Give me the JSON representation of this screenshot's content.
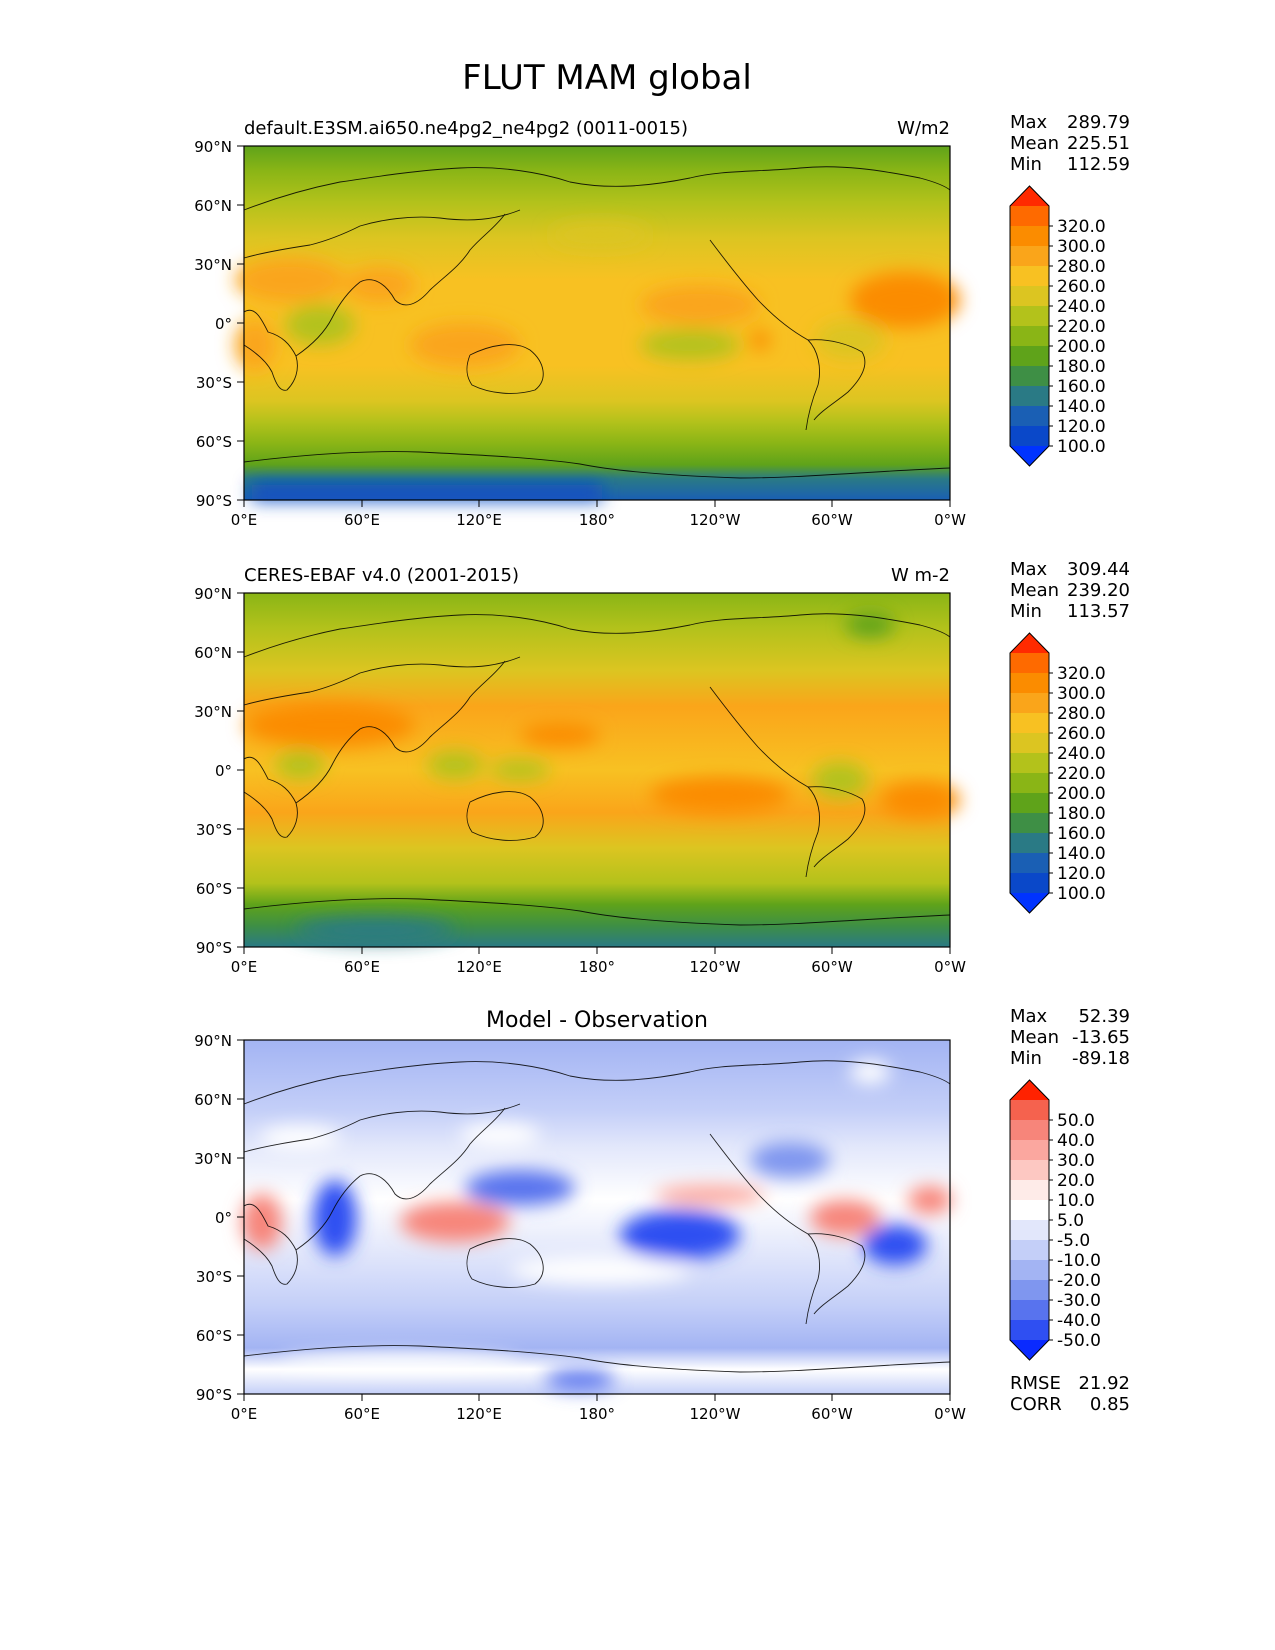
{
  "figure_title": "FLUT MAM global",
  "chart_data": [
    {
      "type": "heatmap",
      "title_left": "default.E3SM.ai650.ne4pg2_ne4pg2 (0011-0015)",
      "title_right": "W/m2",
      "stats": [
        {
          "label": "Max",
          "value": "289.79"
        },
        {
          "label": "Mean",
          "value": "225.51"
        },
        {
          "label": "Min",
          "value": "112.59"
        }
      ],
      "xticks": [
        "0°E",
        "60°E",
        "120°E",
        "180°",
        "120°W",
        "60°W",
        "0°W"
      ],
      "yticks": [
        "90°N",
        "60°N",
        "30°N",
        "0°",
        "30°S",
        "60°S",
        "90°S"
      ],
      "xlim": [
        0,
        360
      ],
      "ylim": [
        -90,
        90
      ],
      "colorbar": {
        "labels": [
          "320.0",
          "300.0",
          "280.0",
          "260.0",
          "240.0",
          "220.0",
          "200.0",
          "180.0",
          "160.0",
          "140.0",
          "120.0",
          "100.0"
        ],
        "colors": [
          "#ff2a00",
          "#fe6a00",
          "#fb8c00",
          "#faa51a",
          "#f8c122",
          "#dcc521",
          "#b3c21b",
          "#8ab516",
          "#5fa31a",
          "#3e8f45",
          "#2a7a85",
          "#1a5fb4",
          "#0a48c9",
          "#0033ff"
        ]
      }
    },
    {
      "type": "heatmap",
      "title_left": "CERES-EBAF v4.0 (2001-2015)",
      "title_right": "W m-2",
      "stats": [
        {
          "label": "Max",
          "value": "309.44"
        },
        {
          "label": "Mean",
          "value": "239.20"
        },
        {
          "label": "Min",
          "value": "113.57"
        }
      ],
      "xticks": [
        "0°E",
        "60°E",
        "120°E",
        "180°",
        "120°W",
        "60°W",
        "0°W"
      ],
      "yticks": [
        "90°N",
        "60°N",
        "30°N",
        "0°",
        "30°S",
        "60°S",
        "90°S"
      ],
      "xlim": [
        0,
        360
      ],
      "ylim": [
        -90,
        90
      ],
      "colorbar": {
        "labels": [
          "320.0",
          "300.0",
          "280.0",
          "260.0",
          "240.0",
          "220.0",
          "200.0",
          "180.0",
          "160.0",
          "140.0",
          "120.0",
          "100.0"
        ],
        "colors": [
          "#ff2a00",
          "#fe6a00",
          "#fb8c00",
          "#faa51a",
          "#f8c122",
          "#dcc521",
          "#b3c21b",
          "#8ab516",
          "#5fa31a",
          "#3e8f45",
          "#2a7a85",
          "#1a5fb4",
          "#0a48c9",
          "#0033ff"
        ]
      }
    },
    {
      "type": "heatmap",
      "title_center": "Model - Observation",
      "stats": [
        {
          "label": "Max",
          "value": "52.39"
        },
        {
          "label": "Mean",
          "value": "-13.65"
        },
        {
          "label": "Min",
          "value": "-89.18"
        }
      ],
      "extra_stats": [
        {
          "label": "RMSE",
          "value": "21.92"
        },
        {
          "label": "CORR",
          "value": "0.85"
        }
      ],
      "xticks": [
        "0°E",
        "60°E",
        "120°E",
        "180°",
        "120°W",
        "60°W",
        "0°W"
      ],
      "yticks": [
        "90°N",
        "60°N",
        "30°N",
        "0°",
        "30°S",
        "60°S",
        "90°S"
      ],
      "xlim": [
        0,
        360
      ],
      "ylim": [
        -90,
        90
      ],
      "colorbar": {
        "labels": [
          "50.0",
          "40.0",
          "30.0",
          "20.0",
          "10.0",
          "5.0",
          "-5.0",
          "-10.0",
          "-20.0",
          "-30.0",
          "-40.0",
          "-50.0"
        ],
        "colors": [
          "#ff2200",
          "#f5624e",
          "#f7857a",
          "#fba79f",
          "#fdc8c2",
          "#feebe8",
          "#ffffff",
          "#e2e7fb",
          "#c4cff8",
          "#a3b4f3",
          "#7f96ef",
          "#5873ee",
          "#2f4ff2",
          "#0a2aff"
        ]
      }
    }
  ]
}
